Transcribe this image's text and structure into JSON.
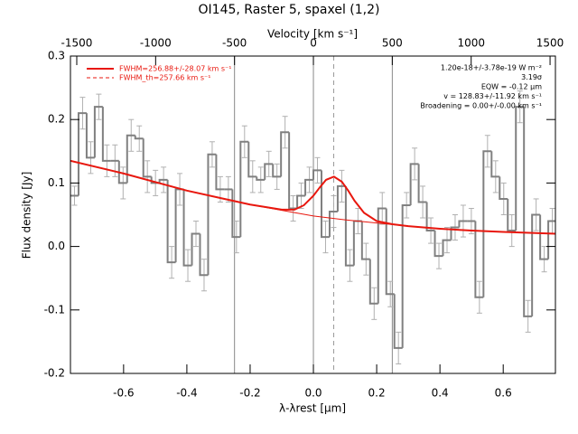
{
  "chart_data": {
    "type": "histogram",
    "title": "OI145, Raster 5, spaxel (1,2)",
    "xlabel": "λ-λrest [μm]",
    "ylabel": "Flux density [Jy]",
    "x2label": "Velocity [km s⁻¹]",
    "xlim": [
      -0.768,
      0.765
    ],
    "ylim": [
      -0.2,
      0.3
    ],
    "x2lim": [
      -1540,
      1534
    ],
    "xticks": [
      -0.6,
      -0.4,
      -0.2,
      {
        "value": 0,
        "label": "0.0"
      },
      0.2,
      0.4,
      0.6
    ],
    "yticks": [
      -0.2,
      -0.1,
      {
        "value": 0,
        "label": "0.0"
      },
      0.1,
      0.2,
      0.3
    ],
    "x2ticks": [
      -1500,
      -1000,
      -500,
      0,
      500,
      1000,
      1500
    ],
    "velocity_lines": [
      -500,
      0,
      500
    ],
    "line_velocity": 128.83,
    "color": "#808080",
    "error_color": "#b0b0b0",
    "bins": [
      -0.768,
      -0.7424,
      -0.7168,
      -0.6912,
      -0.6656,
      -0.64,
      -0.6144,
      -0.5888,
      -0.5632,
      -0.5376,
      -0.512,
      -0.4864,
      -0.4608,
      -0.4352,
      -0.4096,
      -0.384,
      -0.3584,
      -0.3328,
      -0.3072,
      -0.2816,
      -0.256,
      -0.2304,
      -0.2048,
      -0.1792,
      -0.1536,
      -0.128,
      -0.1024,
      -0.0768,
      -0.0512,
      -0.0256,
      0,
      0.0256,
      0.0512,
      0.0768,
      0.1024,
      0.128,
      0.1536,
      0.1792,
      0.2048,
      0.2304,
      0.256,
      0.2816,
      0.3072,
      0.3328,
      0.3584,
      0.384,
      0.4096,
      0.4352,
      0.4608,
      0.4864,
      0.512,
      0.5376,
      0.5632,
      0.5888,
      0.6144,
      0.64,
      0.6656,
      0.6912,
      0.7168,
      0.7424,
      0.768
    ],
    "values": [
      0.08,
      0.21,
      0.14,
      0.22,
      0.135,
      0.135,
      0.1,
      0.175,
      0.17,
      0.11,
      0.1,
      0.105,
      -0.025,
      0.09,
      -0.03,
      0.02,
      -0.045,
      0.145,
      0.09,
      0.09,
      0.015,
      0.165,
      0.11,
      0.105,
      0.13,
      0.11,
      0.18,
      0.06,
      0.08,
      0.105,
      0.12,
      0.015,
      0.055,
      0.095,
      -0.03,
      0.04,
      -0.02,
      -0.09,
      0.06,
      -0.075,
      -0.16,
      0.065,
      0.13,
      0.07,
      0.025,
      -0.015,
      0.01,
      0.03,
      0.04,
      0.04,
      -0.08,
      0.15,
      0.11,
      0.075,
      0.025,
      0.22,
      -0.11,
      0.05,
      -0.02,
      0.04
    ],
    "errors": [
      0.015,
      0.025,
      0.025,
      0.02,
      0.025,
      0.025,
      0.025,
      0.025,
      0.02,
      0.025,
      0.02,
      0.02,
      0.025,
      0.025,
      0.025,
      0.02,
      0.025,
      0.02,
      0.02,
      0.02,
      0.025,
      0.025,
      0.025,
      0.02,
      0.02,
      0.02,
      0.025,
      0.02,
      0.02,
      0.02,
      0.02,
      0.025,
      0.025,
      0.025,
      0.025,
      0.02,
      0.025,
      0.025,
      0.025,
      0.02,
      0.025,
      0.02,
      0.025,
      0.025,
      0.02,
      0.02,
      0.02,
      0.02,
      0.025,
      0.02,
      0.025,
      0.025,
      0.025,
      0.025,
      0.025,
      0.025,
      0.025,
      0.025,
      0.02,
      0.02
    ],
    "series": [
      {
        "name": "FWHM=256.88+/-28.07 km s⁻¹",
        "color": "#e8170e",
        "width": 2,
        "x": [
          -0.768,
          -0.6,
          -0.4,
          -0.2,
          -0.1,
          -0.06,
          -0.03,
          0,
          0.02,
          0.04,
          0.065,
          0.09,
          0.11,
          0.13,
          0.16,
          0.2,
          0.25,
          0.3,
          0.4,
          0.5,
          0.6,
          0.765
        ],
        "values": [
          0.135,
          0.115,
          0.088,
          0.066,
          0.058,
          0.058,
          0.065,
          0.08,
          0.093,
          0.105,
          0.11,
          0.102,
          0.088,
          0.072,
          0.053,
          0.04,
          0.035,
          0.032,
          0.028,
          0.025,
          0.023,
          0.02
        ]
      },
      {
        "name": "FWHM_th=257.66 km s⁻¹",
        "color": "#e8170e",
        "width": 1,
        "dashed": true,
        "legend_only": true
      },
      {
        "name": null,
        "color": "#e8170e",
        "width": 1,
        "x": [
          -0.768,
          -0.6,
          -0.4,
          -0.2,
          -0.1,
          0,
          0.1,
          0.2,
          0.3,
          0.4,
          0.5,
          0.6,
          0.765
        ],
        "values": [
          0.135,
          0.115,
          0.088,
          0.066,
          0.057,
          0.048,
          0.042,
          0.037,
          0.032,
          0.028,
          0.025,
          0.023,
          0.02
        ]
      }
    ],
    "annotations": [
      "1.20e-18+/-3.78e-19 W m⁻²",
      "3.19σ",
      "EQW = -0.12 μm",
      "v = 128.83+/-11.92 km s⁻¹",
      "Broadening = 0.00+/-0.00 km s⁻¹"
    ]
  }
}
